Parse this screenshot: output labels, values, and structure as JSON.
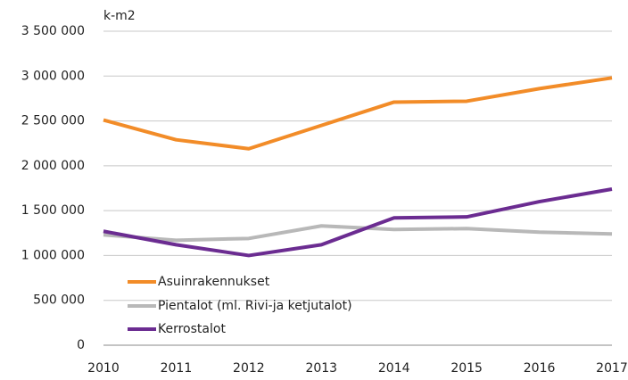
{
  "chart_data": {
    "type": "line",
    "y_label": "k-m2",
    "categories": [
      "2010",
      "2011",
      "2012",
      "2013",
      "2014",
      "2015",
      "2016",
      "2017"
    ],
    "series": [
      {
        "name": "Asuinrakennukset",
        "color": "#f28c28",
        "values": [
          2510000,
          2290000,
          2190000,
          2450000,
          2710000,
          2720000,
          2860000,
          2980000
        ]
      },
      {
        "name": "Pientalot (ml. Rivi-ja ketjutalot)",
        "color": "#b8b8b8",
        "values": [
          1230000,
          1170000,
          1190000,
          1330000,
          1290000,
          1300000,
          1260000,
          1240000
        ]
      },
      {
        "name": "Kerrostalot",
        "color": "#6b2c91",
        "values": [
          1270000,
          1120000,
          1000000,
          1120000,
          1420000,
          1430000,
          1600000,
          1740000
        ]
      }
    ],
    "ylim": [
      0,
      3500000
    ],
    "yticks": [
      0,
      {
        "value": 500000,
        "label": "500 000"
      },
      {
        "value": 1000000,
        "label": "1 000 000"
      },
      {
        "value": 1500000,
        "label": "1 500 000"
      },
      {
        "value": 2000000,
        "label": "2 000 000"
      },
      {
        "value": 2500000,
        "label": "2 500 000"
      },
      {
        "value": 3000000,
        "label": "3 000 000"
      },
      {
        "value": 3500000,
        "label": "3 500 000"
      }
    ],
    "grid": true,
    "legend": "lower-left"
  }
}
